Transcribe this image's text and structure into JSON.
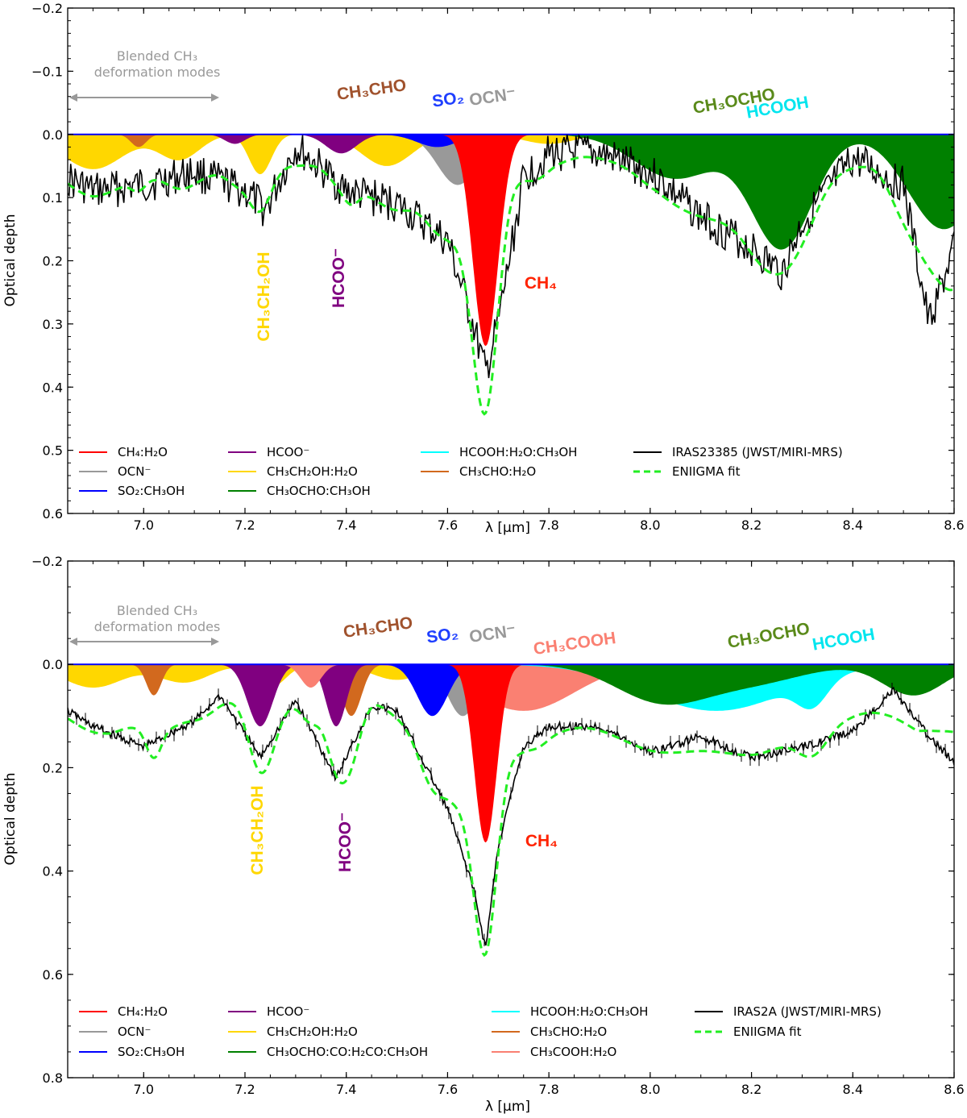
{
  "chart_data": [
    {
      "type": "area",
      "panel": "top",
      "xlabel": "λ [μm]",
      "ylabel": "Optical depth",
      "xlim": [
        6.85,
        8.6
      ],
      "ylim": [
        0.6,
        -0.2
      ],
      "y_inverted": true,
      "xticks": [
        "7.0",
        "7.2",
        "7.4",
        "7.6",
        "7.8",
        "8.0",
        "8.2",
        "8.4",
        "8.6"
      ],
      "xtick_values": [
        7.0,
        7.2,
        7.4,
        7.6,
        7.8,
        8.0,
        8.2,
        8.4,
        8.6
      ],
      "yticks": [
        "−0.2",
        "−0.1",
        "0.0",
        "0.1",
        "0.2",
        "0.3",
        "0.4",
        "0.5",
        "0.6"
      ],
      "ytick_values": [
        -0.2,
        -0.1,
        0.0,
        0.1,
        0.2,
        0.3,
        0.4,
        0.5,
        0.6
      ],
      "components": [
        {
          "name": "CH3CH2OH:H2O",
          "color": "#ffd700",
          "peaks": [
            {
              "c": 6.9,
              "a": 0.055,
              "w": 0.06
            },
            {
              "c": 7.07,
              "a": 0.04,
              "w": 0.04
            },
            {
              "c": 7.23,
              "a": 0.063,
              "w": 0.022
            },
            {
              "c": 7.48,
              "a": 0.05,
              "w": 0.05
            },
            {
              "c": 7.8,
              "a": 0.015,
              "w": 0.05
            }
          ]
        },
        {
          "name": "CH3CHO:H2O",
          "color": "#d2691e",
          "peaks": [
            {
              "c": 6.99,
              "a": 0.02,
              "w": 0.015
            },
            {
              "c": 7.41,
              "a": 0.02,
              "w": 0.015
            }
          ]
        },
        {
          "name": "HCOO-",
          "color": "#800080",
          "peaks": [
            {
              "c": 7.18,
              "a": 0.015,
              "w": 0.02
            },
            {
              "c": 7.39,
              "a": 0.03,
              "w": 0.03
            }
          ]
        },
        {
          "name": "OCN-",
          "color": "#999999",
          "peaks": [
            {
              "c": 7.62,
              "a": 0.08,
              "w": 0.04
            }
          ]
        },
        {
          "name": "SO2:CH3OH",
          "color": "#0000ff",
          "peaks": [
            {
              "c": 7.58,
              "a": 0.02,
              "w": 0.04
            }
          ]
        },
        {
          "name": "CH4:H2O",
          "color": "#ff0000",
          "peaks": [
            {
              "c": 7.675,
              "a": 0.335,
              "w": 0.025
            }
          ]
        },
        {
          "name": "HCOOH:H2O:CH3OH",
          "color": "#00ffff",
          "peaks": [
            {
              "c": 8.15,
              "a": 0.03,
              "w": 0.13
            }
          ]
        },
        {
          "name": "CH3OCHO:CH3OH",
          "color": "#008000",
          "peaks": [
            {
              "c": 8.05,
              "a": 0.07,
              "w": 0.08
            },
            {
              "c": 8.26,
              "a": 0.18,
              "w": 0.06
            },
            {
              "c": 8.58,
              "a": 0.15,
              "w": 0.07
            }
          ]
        }
      ],
      "series": [
        {
          "name": "IRAS23385 (JWST/MIRI-MRS)",
          "color": "#000000",
          "style": "solid",
          "noise": 0.03,
          "x": [
            6.85,
            6.9,
            7.0,
            7.1,
            7.2,
            7.24,
            7.3,
            7.4,
            7.5,
            7.6,
            7.65,
            7.675,
            7.7,
            7.75,
            7.8,
            7.9,
            8.0,
            8.1,
            8.2,
            8.26,
            8.3,
            8.4,
            8.5,
            8.55,
            8.6
          ],
          "values": [
            0.07,
            0.09,
            0.08,
            0.06,
            0.09,
            0.12,
            0.02,
            0.09,
            0.11,
            0.17,
            0.3,
            0.38,
            0.3,
            0.07,
            0.03,
            0.03,
            0.06,
            0.13,
            0.18,
            0.22,
            0.14,
            0.04,
            0.08,
            0.3,
            0.18
          ]
        },
        {
          "name": "ENIIGMA fit",
          "color": "#22ee22",
          "style": "dashed"
        }
      ],
      "legend": {
        "position": "bottom-left",
        "entries": [
          "CH₄:H₂O",
          "OCN⁻",
          "SO₂:CH₃OH",
          "HCOO⁻",
          "CH₃CH₂OH:H₂O",
          "CH₃OCHO:CH₃OH",
          "HCOOH:H₂O:CH₃OH",
          "CH₃CHO:H₂O",
          "IRAS23385 (JWST/MIRI-MRS)",
          "ENIIGMA fit"
        ]
      },
      "annotations": {
        "blended_line1": "Blended CH₃",
        "blended_line2": "deformation modes",
        "ch3cho": "CH₃CHO",
        "so2": "SO₂",
        "ocn": "OCN⁻",
        "ch3ocho": "CH₃OCHO",
        "hcooh": "HCOOH",
        "ch3ch2oh": "CH₃CH₂OH",
        "hcoo": "HCOO⁻",
        "ch4": "CH₄"
      }
    },
    {
      "type": "area",
      "panel": "bottom",
      "xlabel": "λ [μm]",
      "ylabel": "Optical depth",
      "xlim": [
        6.85,
        8.6
      ],
      "ylim": [
        0.8,
        -0.2
      ],
      "y_inverted": true,
      "xticks": [
        "7.0",
        "7.2",
        "7.4",
        "7.6",
        "7.8",
        "8.0",
        "8.2",
        "8.4",
        "8.6"
      ],
      "xtick_values": [
        7.0,
        7.2,
        7.4,
        7.6,
        7.8,
        8.0,
        8.2,
        8.4,
        8.6
      ],
      "yticks": [
        "−0.2",
        "0.0",
        "0.2",
        "0.4",
        "0.6",
        "0.8"
      ],
      "ytick_values": [
        -0.2,
        0.0,
        0.2,
        0.4,
        0.6,
        0.8
      ],
      "components": [
        {
          "name": "CH3CH2OH:H2O",
          "color": "#ffd700",
          "peaks": [
            {
              "c": 6.9,
              "a": 0.045,
              "w": 0.06
            },
            {
              "c": 7.08,
              "a": 0.035,
              "w": 0.05
            },
            {
              "c": 7.25,
              "a": 0.045,
              "w": 0.03
            },
            {
              "c": 7.5,
              "a": 0.03,
              "w": 0.05
            }
          ]
        },
        {
          "name": "CH3CHO:H2O",
          "color": "#d2691e",
          "peaks": [
            {
              "c": 7.02,
              "a": 0.06,
              "w": 0.015
            },
            {
              "c": 7.41,
              "a": 0.1,
              "w": 0.02
            }
          ]
        },
        {
          "name": "HCOO-",
          "color": "#800080",
          "peaks": [
            {
              "c": 7.23,
              "a": 0.12,
              "w": 0.025
            },
            {
              "c": 7.38,
              "a": 0.12,
              "w": 0.02
            }
          ]
        },
        {
          "name": "CH3COOH:H2O",
          "color": "#fa8072",
          "peaks": [
            {
              "c": 7.33,
              "a": 0.045,
              "w": 0.02
            },
            {
              "c": 7.75,
              "a": 0.09,
              "w": 0.1
            }
          ]
        },
        {
          "name": "OCN-",
          "color": "#999999",
          "peaks": [
            {
              "c": 7.63,
              "a": 0.1,
              "w": 0.03
            }
          ]
        },
        {
          "name": "SO2:CH3OH",
          "color": "#0000ff",
          "peaks": [
            {
              "c": 7.57,
              "a": 0.1,
              "w": 0.03
            }
          ]
        },
        {
          "name": "CH4:H2O",
          "color": "#ff0000",
          "peaks": [
            {
              "c": 7.675,
              "a": 0.345,
              "w": 0.022
            }
          ]
        },
        {
          "name": "HCOOH:H2O:CH3OH",
          "color": "#00ffff",
          "peaks": [
            {
              "c": 8.13,
              "a": 0.09,
              "w": 0.14
            },
            {
              "c": 8.32,
              "a": 0.05,
              "w": 0.03
            }
          ]
        },
        {
          "name": "CH3OCHO:CO:H2CO:CH3OH",
          "color": "#008000",
          "peaks": [
            {
              "c": 8.02,
              "a": 0.07,
              "w": 0.09
            },
            {
              "c": 8.2,
              "a": 0.035,
              "w": 0.1
            },
            {
              "c": 8.52,
              "a": 0.06,
              "w": 0.06
            }
          ]
        }
      ],
      "series": [
        {
          "name": "IRAS2A (JWST/MIRI-MRS)",
          "color": "#000000",
          "style": "solid",
          "noise": 0.008,
          "errorbars": true,
          "x": [
            6.85,
            6.9,
            7.0,
            7.1,
            7.15,
            7.23,
            7.3,
            7.38,
            7.45,
            7.5,
            7.6,
            7.65,
            7.675,
            7.7,
            7.75,
            7.8,
            7.9,
            8.0,
            8.1,
            8.2,
            8.3,
            8.4,
            8.48,
            8.55,
            8.6
          ],
          "values": [
            0.09,
            0.12,
            0.16,
            0.11,
            0.06,
            0.18,
            0.07,
            0.22,
            0.08,
            0.09,
            0.28,
            0.43,
            0.55,
            0.35,
            0.16,
            0.12,
            0.12,
            0.17,
            0.14,
            0.18,
            0.16,
            0.13,
            0.05,
            0.14,
            0.19
          ]
        },
        {
          "name": "ENIIGMA fit",
          "color": "#22ee22",
          "style": "dashed"
        }
      ],
      "legend": {
        "position": "bottom-left",
        "entries": [
          "CH₄:H₂O",
          "OCN⁻",
          "SO₂:CH₃OH",
          "HCOO⁻",
          "CH₃CH₂OH:H₂O",
          "CH₃OCHO:CO:H₂CO:CH₃OH",
          "HCOOH:H₂O:CH₃OH",
          "CH₃CHO:H₂O",
          "CH₃COOH:H₂O",
          "IRAS2A (JWST/MIRI-MRS)",
          "ENIIGMA fit"
        ]
      },
      "annotations": {
        "blended_line1": "Blended CH₃",
        "blended_line2": "deformation modes",
        "ch3cho": "CH₃CHO",
        "so2": "SO₂",
        "ocn": "OCN⁻",
        "ch3cooh": "CH₃COOH",
        "ch3ocho": "CH₃OCHO",
        "hcooh": "HCOOH",
        "ch3ch2oh": "CH₃CH₂OH",
        "hcoo": "HCOO⁻",
        "ch4": "CH₄"
      }
    }
  ]
}
